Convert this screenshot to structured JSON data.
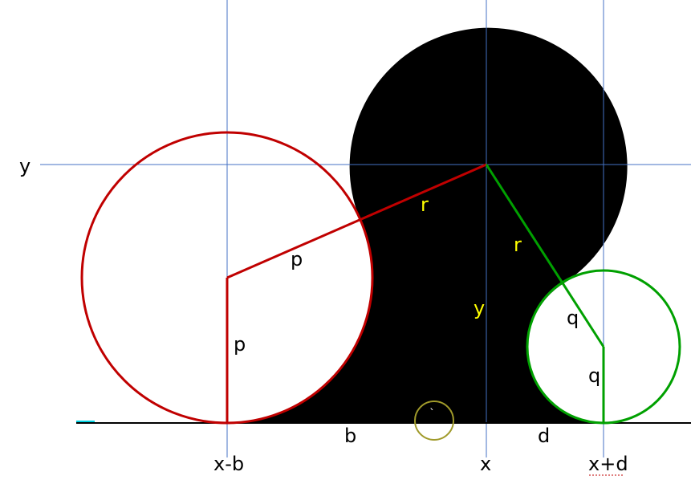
{
  "colors": {
    "background": "#ffffff",
    "blob": "#000000",
    "guide": "#4472c4",
    "red": "#c00000",
    "green": "#00a000",
    "baseline": "#000000",
    "label_yellow": "#ffff00",
    "marker": "#a09a2a",
    "accent_cyan": "#00d0e0"
  },
  "labels": {
    "y_axis": "y",
    "x_minus_b": "x-b",
    "x": "x",
    "x_plus_d": "x+d",
    "p_radius": "p",
    "p_vertical": "p",
    "r_left": "r",
    "r_right": "r",
    "y_inside": "y",
    "q_radius": "q",
    "q_vertical": "q",
    "b": "b",
    "d": "d",
    "tick": "`"
  }
}
